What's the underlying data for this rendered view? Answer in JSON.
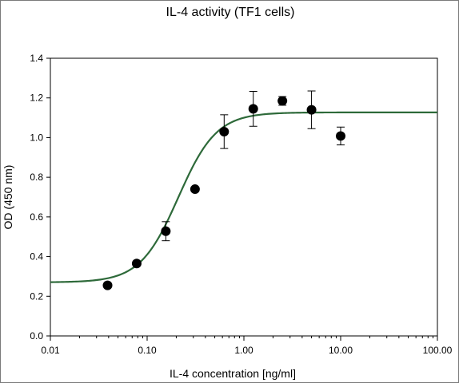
{
  "chart_data": {
    "type": "scatter",
    "title": "IL-4 activity (TF1 cells)",
    "xlabel": "IL-4 concentration [ng/ml]",
    "ylabel": "OD (450 nm)",
    "x_scale": "log",
    "xlim": [
      0.01,
      100
    ],
    "ylim": [
      0,
      1.4
    ],
    "x_ticks": [
      0.01,
      0.1,
      1,
      10,
      100
    ],
    "x_tick_labels": [
      "0.01",
      "0.10",
      "1.00",
      "10.00",
      "100.00"
    ],
    "y_ticks": [
      0,
      0.2,
      0.4,
      0.6,
      0.8,
      1.0,
      1.2,
      1.4
    ],
    "y_tick_labels": [
      "0.0",
      "0.2",
      "0.4",
      "0.6",
      "0.8",
      "1.0",
      "1.2",
      "1.4"
    ],
    "grid": false,
    "series": [
      {
        "kind": "points",
        "x": [
          0.039,
          0.078,
          0.156,
          0.3125,
          0.625,
          1.25,
          2.5,
          5,
          10
        ],
        "y": [
          0.255,
          0.365,
          0.528,
          0.74,
          1.03,
          1.145,
          1.185,
          1.14,
          1.008
        ],
        "error": [
          0,
          0,
          0.048,
          0,
          0.085,
          0.088,
          0.022,
          0.095,
          0.045
        ],
        "color": "#000000"
      },
      {
        "kind": "fit",
        "model": "four-parameter logistic",
        "bottom": 0.27,
        "top": 1.127,
        "ec50": 0.21,
        "hill": 2.2,
        "color": "#2e6a3a"
      }
    ]
  }
}
